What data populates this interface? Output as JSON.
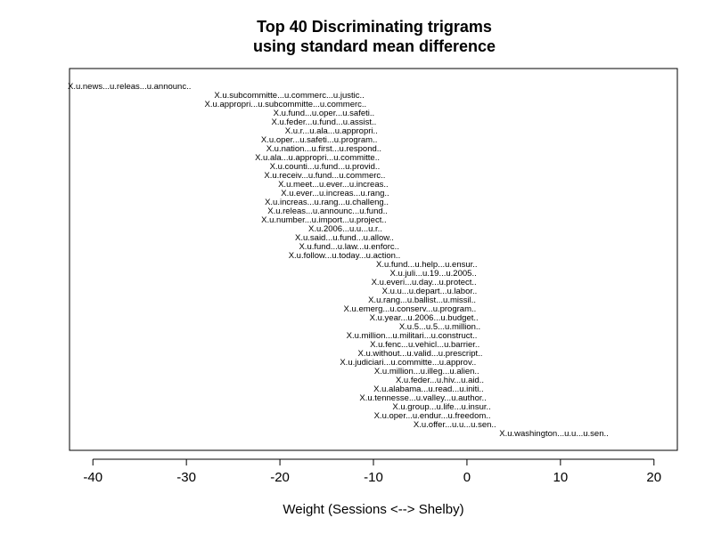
{
  "chart_data": {
    "type": "scatter",
    "title_lines": [
      "Top 40 Discriminating trigrams",
      "using standard mean difference"
    ],
    "xlabel": "Weight (Sessions <--> Shelby)",
    "ylabel": "",
    "xlim": [
      -42.5,
      22.5
    ],
    "xticks": [
      -40,
      -30,
      -20,
      -10,
      0,
      10,
      20
    ],
    "grid": false,
    "points": [
      {
        "label": "X.u.news...u.releas...u.announc..",
        "x": -42.6
      },
      {
        "label": "X.u.subcommitte...u.commerc...u.justic..",
        "x": -19.0
      },
      {
        "label": "X.u.appropri...u.subcommitte...u.commerc..",
        "x": -19.4
      },
      {
        "label": "X.u.fund...u.oper...u.safeti..",
        "x": -15.3
      },
      {
        "label": "X.u.feder...u.fund...u.assist..",
        "x": -15.3
      },
      {
        "label": "X.u.r...u.ala...u.appropri..",
        "x": -14.5
      },
      {
        "label": "X.u.oper...u.safeti...u.program..",
        "x": -15.8
      },
      {
        "label": "X.u.nation...u.first...u.respond..",
        "x": -15.3
      },
      {
        "label": "X.u.ala...u.appropri...u.committe..",
        "x": -16.0
      },
      {
        "label": "X.u.counti...u.fund...u.provid..",
        "x": -15.2
      },
      {
        "label": "X.u.receiv...u.fund...u.commerc..",
        "x": -15.2
      },
      {
        "label": "X.u.meet...u.ever...u.increas..",
        "x": -14.3
      },
      {
        "label": "X.u.ever...u.increas...u.rang..",
        "x": -14.1
      },
      {
        "label": "X.u.increas...u.rang...u.challeng..",
        "x": -15.0
      },
      {
        "label": "X.u.releas...u.announc...u.fund..",
        "x": -14.9
      },
      {
        "label": "X.u.number...u.import...u.project..",
        "x": -15.3
      },
      {
        "label": "X.u.2006...u.u...u.r..",
        "x": -13.0
      },
      {
        "label": "X.u.said...u.fund...u.allow..",
        "x": -13.1
      },
      {
        "label": "X.u.fund...u.law...u.enforc..",
        "x": -12.6
      },
      {
        "label": "X.u.follow...u.today...u.action..",
        "x": -13.1
      },
      {
        "label": "X.u.fund...u.help...u.ensur..",
        "x": -4.3
      },
      {
        "label": "X.u.juli...u.19...u.2005..",
        "x": -3.6
      },
      {
        "label": "X.u.everi...u.day...u.protect..",
        "x": -4.6
      },
      {
        "label": "X.u.u...u.depart...u.labor..",
        "x": -4.0
      },
      {
        "label": "X.u.rang...u.ballist...u.missil..",
        "x": -4.8
      },
      {
        "label": "X.u.emerg...u.conserv...u.program..",
        "x": -6.1
      },
      {
        "label": "X.u.year...u.2006...u.budget..",
        "x": -4.6
      },
      {
        "label": "X.u.5...u.5...u.million..",
        "x": -2.9
      },
      {
        "label": "X.u.million...u.militari...u.construct..",
        "x": -5.9
      },
      {
        "label": "X.u.fenc...u.vehicl...u.barrier..",
        "x": -4.5
      },
      {
        "label": "X.u.without...u.valid...u.prescript..",
        "x": -5.0
      },
      {
        "label": "X.u.judiciari...u.committe...u.approv..",
        "x": -6.3
      },
      {
        "label": "X.u.million...u.illeg...u.alien..",
        "x": -4.3
      },
      {
        "label": "X.u.feder...u.hiv...u.aid..",
        "x": -2.9
      },
      {
        "label": "X.u.alabama...u.read...u.initi..",
        "x": -4.1
      },
      {
        "label": "X.u.tennesse...u.valley...u.author..",
        "x": -4.7
      },
      {
        "label": "X.u.group...u.life...u.insur..",
        "x": -2.7
      },
      {
        "label": "X.u.oper...u.endur...u.freedom..",
        "x": -3.7
      },
      {
        "label": "X.u.offer...u.u...u.sen..",
        "x": -1.3
      },
      {
        "label": "X.u.washington...u.u...u.sen..",
        "x": 9.3
      }
    ]
  }
}
